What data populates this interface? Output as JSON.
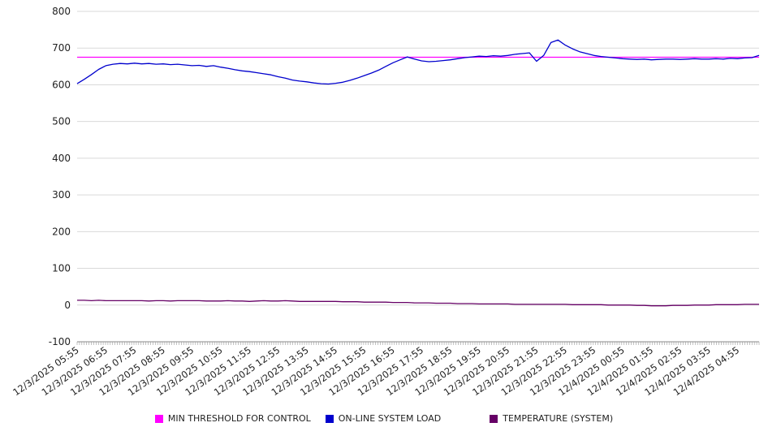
{
  "chart_data": {
    "type": "line",
    "title": "",
    "xlabel": "",
    "ylabel": "",
    "ylim": [
      -100,
      800
    ],
    "ytick_step": 100,
    "grid": true,
    "legend_position": "bottom",
    "points_per_label": 4,
    "x_labels": [
      "12/3/2025 05:55",
      "12/3/2025 06:55",
      "12/3/2025 07:55",
      "12/3/2025 08:55",
      "12/3/2025 09:55",
      "12/3/2025 10:55",
      "12/3/2025 11:55",
      "12/3/2025 12:55",
      "12/3/2025 13:55",
      "12/3/2025 14:55",
      "12/3/2025 15:55",
      "12/3/2025 16:55",
      "12/3/2025 17:55",
      "12/3/2025 18:55",
      "12/3/2025 19:55",
      "12/3/2025 20:55",
      "12/3/2025 21:55",
      "12/3/2025 22:55",
      "12/3/2025 23:55",
      "12/4/2025 00:55",
      "12/4/2025 01:55",
      "12/4/2025 02:55",
      "12/4/2025 03:55",
      "12/4/2025 04:55"
    ],
    "y_tick_labels": [
      "800",
      "700",
      "600",
      "500",
      "400",
      "300",
      "200",
      "100",
      "0",
      "-100"
    ],
    "series": [
      {
        "name": "MIN THRESHOLD FOR CONTROL",
        "color": "#ff00ff",
        "constant": 675
      },
      {
        "name": "ON-LINE SYSTEM LOAD",
        "color": "#0000cd",
        "values": [
          603,
          615,
          628,
          642,
          652,
          656,
          658,
          657,
          659,
          657,
          658,
          656,
          657,
          655,
          656,
          654,
          652,
          653,
          650,
          652,
          648,
          645,
          641,
          638,
          636,
          633,
          630,
          627,
          622,
          618,
          613,
          610,
          608,
          605,
          603,
          602,
          604,
          607,
          612,
          618,
          625,
          632,
          640,
          650,
          660,
          668,
          676,
          670,
          665,
          663,
          664,
          666,
          668,
          671,
          674,
          676,
          678,
          677,
          679,
          678,
          680,
          683,
          685,
          687,
          664,
          680,
          715,
          722,
          708,
          698,
          690,
          685,
          680,
          677,
          675,
          673,
          671,
          670,
          669,
          670,
          668,
          669,
          670,
          670,
          669,
          670,
          671,
          670,
          670,
          671,
          670,
          672,
          671,
          673,
          674,
          680
        ]
      },
      {
        "name": "TEMPERATURE (SYSTEM)",
        "color": "#660066",
        "values": [
          13,
          13,
          12,
          13,
          12,
          12,
          12,
          12,
          12,
          12,
          11,
          12,
          12,
          11,
          12,
          12,
          12,
          12,
          11,
          11,
          11,
          12,
          11,
          11,
          10,
          11,
          12,
          11,
          11,
          12,
          11,
          10,
          10,
          10,
          10,
          10,
          10,
          9,
          9,
          9,
          8,
          8,
          8,
          8,
          7,
          7,
          7,
          6,
          6,
          6,
          5,
          5,
          5,
          4,
          4,
          4,
          3,
          3,
          3,
          3,
          3,
          2,
          2,
          2,
          2,
          2,
          2,
          2,
          2,
          1,
          1,
          1,
          1,
          1,
          0,
          0,
          0,
          0,
          -1,
          -1,
          -2,
          -2,
          -2,
          -1,
          -1,
          -1,
          0,
          0,
          0,
          1,
          1,
          1,
          1,
          2,
          2,
          2
        ]
      }
    ],
    "colors": {
      "gridline": "#d9d9d9",
      "axis_line": "#888888",
      "tick": "#999999",
      "label_text": "#222222"
    }
  }
}
